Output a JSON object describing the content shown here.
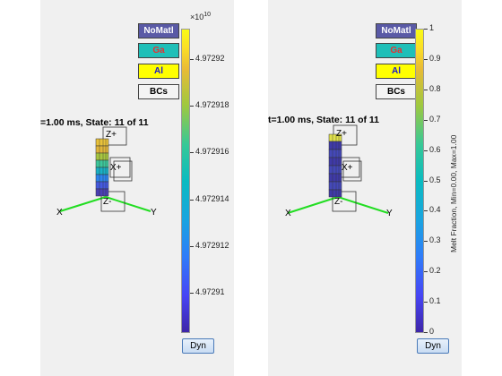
{
  "left": {
    "state_title": "=1.00 ms, State: 11 of 11",
    "exponent": "×10",
    "exponent_power": "10",
    "ticks": [
      "4.97292",
      "4.972918",
      "4.972916",
      "4.972914",
      "4.972912",
      "4.97291"
    ],
    "axes": {
      "x": "X",
      "y": "Y",
      "zplus": "Z+",
      "zminus": "Z-",
      "xplus": "X+"
    },
    "buttons": {
      "nomatl": "NoMatl",
      "ga": "Ga",
      "al": "Al",
      "bcs": "BCs"
    },
    "dyn": "Dyn"
  },
  "right": {
    "state_title": "t=1.00 ms, State: 11 of 11",
    "ticks": [
      "1",
      "0.9",
      "0.8",
      "0.7",
      "0.6",
      "0.5",
      "0.4",
      "0.3",
      "0.2",
      "0.1",
      "0"
    ],
    "colorbar_label": "Melt Fraction, Min=0.00, Max=1.00",
    "axes": {
      "x": "X",
      "y": "Y",
      "zplus": "Z+",
      "zminus": "Z-",
      "xplus": "X+"
    },
    "buttons": {
      "nomatl": "NoMatl",
      "ga": "Ga",
      "al": "Al",
      "bcs": "BCs"
    },
    "dyn": "Dyn"
  },
  "colors": {
    "axis_line": "#22dd22",
    "panel_bg": "#f0f0f0"
  }
}
